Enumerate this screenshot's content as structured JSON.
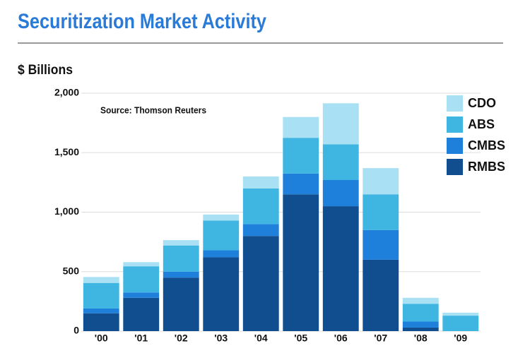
{
  "chart_data": {
    "type": "stacked-bar",
    "title": "Securitization Market Activity",
    "y_label": "$ Billions",
    "annotation": "Source: Thomson Reuters",
    "categories": [
      "'00",
      "'01",
      "'02",
      "'03",
      "'04",
      "'05",
      "'06",
      "'07",
      "'08",
      "'09"
    ],
    "series": [
      {
        "name": "RMBS",
        "color": "#104e8f",
        "values": [
          150,
          280,
          450,
          620,
          800,
          1150,
          1050,
          600,
          30,
          0
        ]
      },
      {
        "name": "CMBS",
        "color": "#1f80dc",
        "values": [
          40,
          45,
          50,
          60,
          100,
          175,
          220,
          250,
          50,
          0
        ]
      },
      {
        "name": "ABS",
        "color": "#3fb6e1",
        "values": [
          215,
          220,
          220,
          250,
          300,
          300,
          300,
          300,
          150,
          130
        ]
      },
      {
        "name": "CDO",
        "color": "#a9e0f3",
        "values": [
          50,
          35,
          45,
          50,
          100,
          175,
          345,
          220,
          50,
          25
        ]
      }
    ],
    "ylim": [
      0,
      2000
    ],
    "yticks": [
      0,
      500,
      {
        "value": 1000,
        "label": "1,000"
      },
      {
        "value": 1500,
        "label": "1,500"
      },
      {
        "value": 2000,
        "label": "2,000"
      }
    ],
    "grid": true,
    "legend": "top-right"
  }
}
